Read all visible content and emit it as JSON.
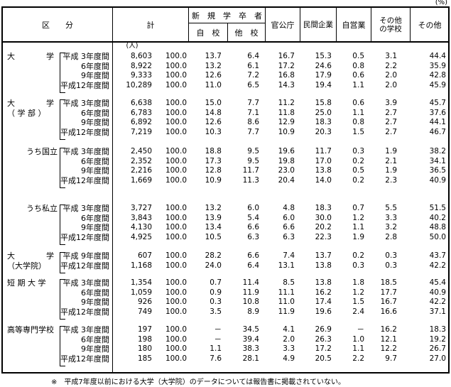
{
  "units": {
    "percent": "(%)",
    "person": "(人)"
  },
  "header": {
    "kubun": "区　　分",
    "total": "計",
    "new_grads": "新　規　学　卒　者",
    "own_school": "自　校",
    "other_school": "他　校",
    "government": "官公庁",
    "private_company": "民間企業",
    "self_employed": "自営業",
    "other_schools": "その他の学校",
    "other": "その他"
  },
  "groups": [
    {
      "label_lines": [
        "大　　　　学"
      ],
      "periods": [
        "平成 3年度間",
        "6年度間",
        "9年度間",
        "平成12年度間"
      ],
      "rows": [
        [
          "8,603",
          "100.0",
          "13.7",
          "6.4",
          "16.7",
          "15.3",
          "0.5",
          "3.1",
          "44.4"
        ],
        [
          "8,922",
          "100.0",
          "13.2",
          "6.1",
          "17.2",
          "24.6",
          "0.8",
          "2.2",
          "35.9"
        ],
        [
          "9,333",
          "100.0",
          "12.6",
          "7.2",
          "16.8",
          "17.9",
          "0.6",
          "2.0",
          "42.8"
        ],
        [
          "10,289",
          "100.0",
          "11.0",
          "6.5",
          "14.3",
          "19.4",
          "1.1",
          "2.0",
          "45.9"
        ]
      ]
    },
    {
      "label_lines": [
        "大　　　　学",
        "（ 学 部 ）"
      ],
      "periods": [
        "平成 3年度間",
        "6年度間",
        "9年度間",
        "平成12年度間"
      ],
      "rows": [
        [
          "6,638",
          "100.0",
          "15.0",
          "7.7",
          "11.2",
          "15.8",
          "0.6",
          "3.9",
          "45.7"
        ],
        [
          "6,783",
          "100.0",
          "14.8",
          "7.1",
          "11.8",
          "25.0",
          "1.1",
          "2.7",
          "37.6"
        ],
        [
          "6,892",
          "100.0",
          "12.6",
          "8.6",
          "12.9",
          "18.3",
          "0.8",
          "2.7",
          "44.1"
        ],
        [
          "7,219",
          "100.0",
          "10.3",
          "7.7",
          "10.9",
          "20.3",
          "1.5",
          "2.7",
          "46.7"
        ]
      ]
    },
    {
      "label_lines": [
        "うち国立"
      ],
      "periods": [
        "平成 3年度間",
        "6年度間",
        "9年度間",
        "平成12年度間"
      ],
      "rows": [
        [
          "2,450",
          "100.0",
          "18.8",
          "9.5",
          "19.6",
          "11.7",
          "0.3",
          "1.9",
          "38.2"
        ],
        [
          "2,352",
          "100.0",
          "17.3",
          "9.5",
          "19.8",
          "17.0",
          "0.2",
          "2.1",
          "34.1"
        ],
        [
          "2,216",
          "100.0",
          "12.8",
          "11.7",
          "23.0",
          "13.8",
          "0.5",
          "1.9",
          "36.5"
        ],
        [
          "1,669",
          "100.0",
          "10.9",
          "11.3",
          "20.4",
          "14.0",
          "0.2",
          "2.3",
          "40.9"
        ]
      ]
    },
    {
      "label_lines": [
        "うち私立"
      ],
      "periods": [
        "平成 3年度間",
        "6年度間",
        "9年度間",
        "平成12年度間"
      ],
      "rows": [
        [
          "3,727",
          "100.0",
          "13.2",
          "6.0",
          "4.8",
          "18.3",
          "0.7",
          "5.5",
          "51.5"
        ],
        [
          "3,843",
          "100.0",
          "13.9",
          "5.4",
          "6.0",
          "30.0",
          "1.2",
          "3.3",
          "40.2"
        ],
        [
          "4,130",
          "100.0",
          "13.4",
          "6.6",
          "6.6",
          "20.2",
          "1.1",
          "3.2",
          "48.8"
        ],
        [
          "4,925",
          "100.0",
          "10.5",
          "6.3",
          "6.3",
          "22.3",
          "1.9",
          "2.8",
          "50.0"
        ]
      ]
    },
    {
      "label_lines": [
        "大　　　　学",
        "（大学院）"
      ],
      "periods": [
        "平成 9年度間",
        "平成12年度間"
      ],
      "rows": [
        [
          "607",
          "100.0",
          "28.2",
          "6.6",
          "7.4",
          "13.7",
          "0.2",
          "0.3",
          "43.7"
        ],
        [
          "1,168",
          "100.0",
          "24.0",
          "6.4",
          "13.1",
          "13.8",
          "0.3",
          "0.3",
          "42.2"
        ]
      ]
    },
    {
      "label_lines": [
        "短 期 大 学"
      ],
      "periods": [
        "平成 3年度間",
        "6年度間",
        "9年度間",
        "平成12年度間"
      ],
      "rows": [
        [
          "1,354",
          "100.0",
          "0.7",
          "11.4",
          "8.5",
          "13.8",
          "1.8",
          "18.5",
          "45.4"
        ],
        [
          "1,059",
          "100.0",
          "0.9",
          "11.9",
          "11.1",
          "16.2",
          "1.2",
          "17.7",
          "40.9"
        ],
        [
          "926",
          "100.0",
          "0.3",
          "10.8",
          "11.0",
          "17.4",
          "1.5",
          "16.7",
          "42.2"
        ],
        [
          "749",
          "100.0",
          "3.5",
          "8.9",
          "11.9",
          "19.6",
          "2.4",
          "16.6",
          "37.1"
        ]
      ]
    },
    {
      "label_lines": [
        "高等専門学校"
      ],
      "periods": [
        "平成 3年度間",
        "6年度間",
        "9年度間",
        "平成12年度間"
      ],
      "rows": [
        [
          "197",
          "100.0",
          "－",
          "34.5",
          "4.1",
          "26.9",
          "－",
          "16.2",
          "18.3"
        ],
        [
          "198",
          "100.0",
          "－",
          "39.4",
          "2.0",
          "26.3",
          "1.0",
          "12.1",
          "19.2"
        ],
        [
          "180",
          "100.0",
          "1.1",
          "38.3",
          "3.3",
          "17.2",
          "1.1",
          "12.2",
          "26.7"
        ],
        [
          "185",
          "100.0",
          "7.6",
          "28.1",
          "4.9",
          "20.5",
          "2.2",
          "9.7",
          "27.0"
        ]
      ]
    }
  ],
  "footnote": "※　平成7年度以前における大学（大学院）のデータについては報告書に掲載されていない。"
}
